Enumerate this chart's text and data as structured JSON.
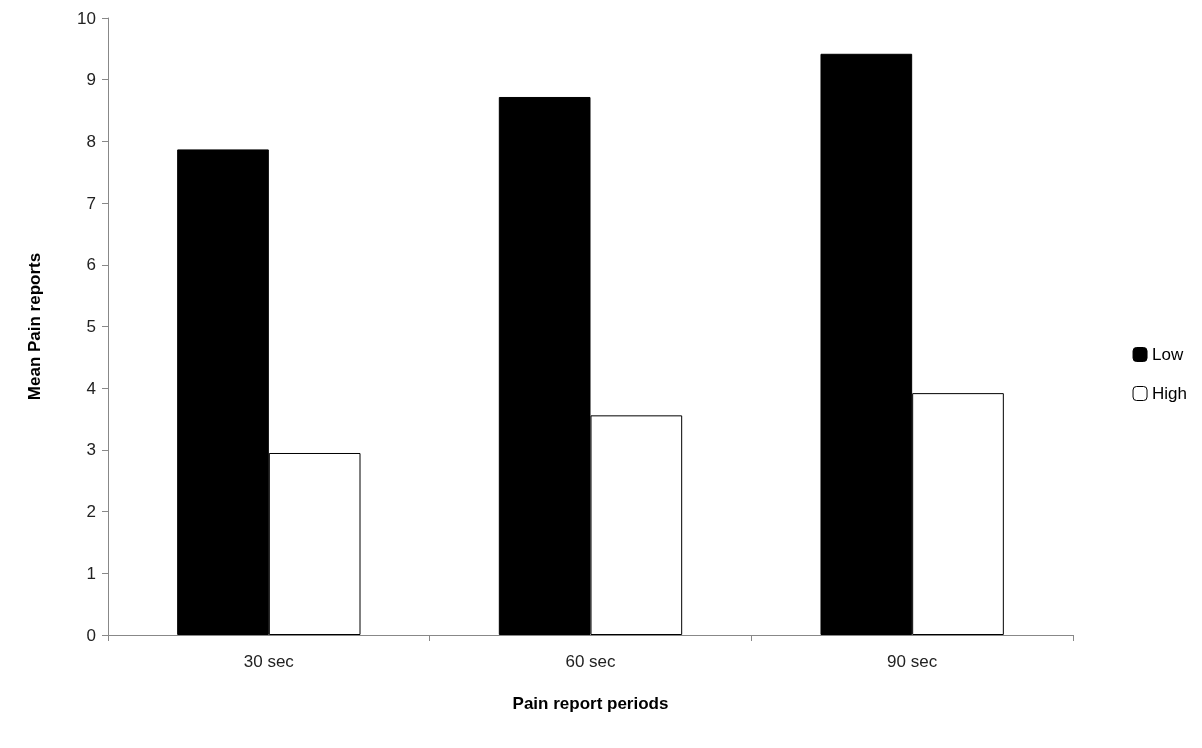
{
  "chart_data": {
    "type": "bar",
    "xlabel": "Pain report periods",
    "ylabel": "Mean Pain reports",
    "categories": [
      "30 sec",
      "60 sec",
      "90 sec"
    ],
    "series": [
      {
        "name": "Low",
        "color": "#000000",
        "values": [
          7.87,
          8.72,
          9.42
        ]
      },
      {
        "name": "High",
        "color": "#ffffff",
        "values": [
          2.95,
          3.56,
          3.92
        ]
      }
    ],
    "ylim": [
      0,
      10
    ],
    "yticks": [
      0,
      1,
      2,
      3,
      4,
      5,
      6,
      7,
      8,
      9,
      10
    ],
    "grid": false,
    "legend": "right"
  }
}
